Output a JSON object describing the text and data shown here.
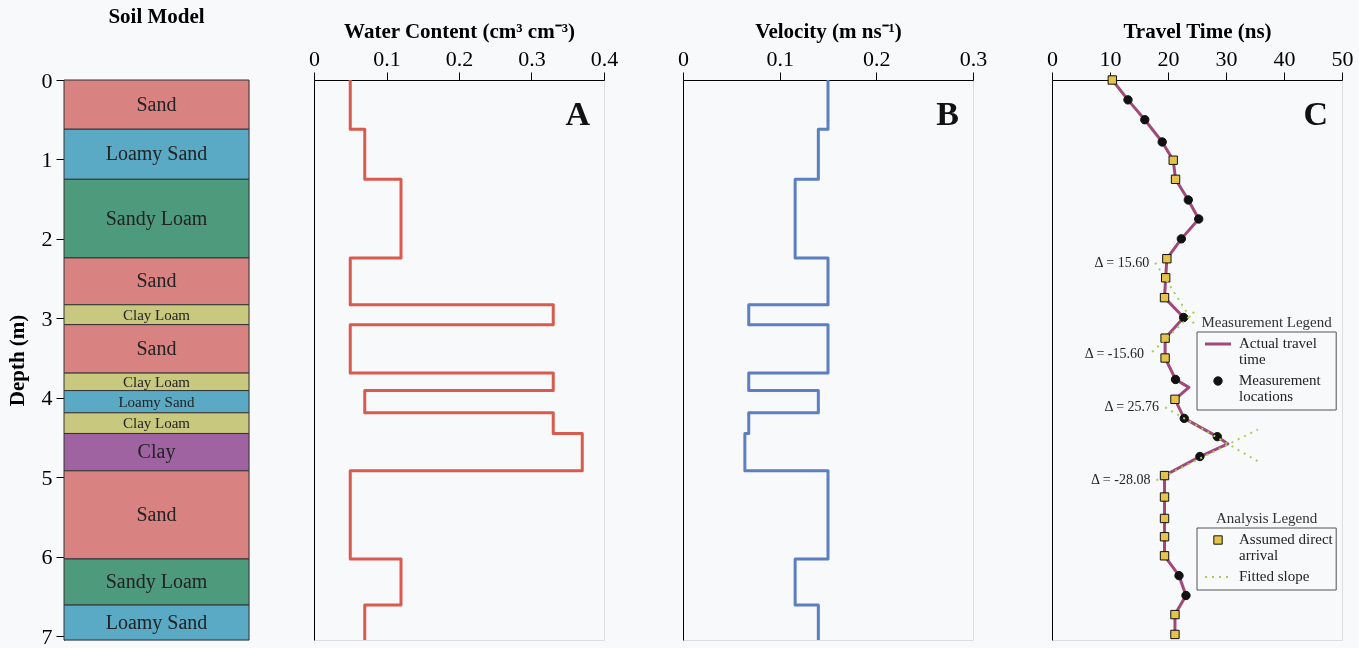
{
  "chart_data": [
    {
      "type": "bar",
      "stacked": true,
      "title": "Soil Model",
      "ylabel": "Depth (m)",
      "categories": [
        null
      ],
      "ylim": [
        7.05,
        0
      ],
      "yticks": [
        0,
        1,
        2,
        3,
        4,
        5,
        6,
        7
      ],
      "tick_labels": "y",
      "series": [
        {
          "name": "Sand",
          "color": "#d98282",
          "values": [
            0.62
          ]
        },
        {
          "name": "Loamy Sand",
          "color": "#5aaac6",
          "values": [
            0.63
          ]
        },
        {
          "name": "Sandy Loam",
          "color": "#4e9a7c",
          "values": [
            0.99
          ]
        },
        {
          "name": "Sand",
          "color": "#d98282",
          "values": [
            0.59
          ]
        },
        {
          "name": "Clay Loam",
          "color": "#c8c97e",
          "values": [
            0.25
          ]
        },
        {
          "name": "Sand",
          "color": "#d98282",
          "values": [
            0.61
          ]
        },
        {
          "name": "Clay Loam",
          "color": "#c8c97e",
          "values": [
            0.22
          ]
        },
        {
          "name": "Loamy Sand",
          "color": "#5aaac6",
          "values": [
            0.28
          ]
        },
        {
          "name": "Clay Loam",
          "color": "#c8c97e",
          "values": [
            0.26
          ]
        },
        {
          "name": "Clay",
          "color": "#9e63a0",
          "values": [
            0.47
          ]
        },
        {
          "name": "Sand",
          "color": "#d98282",
          "values": [
            1.11
          ]
        },
        {
          "name": "Sandy Loam",
          "color": "#4e9a7c",
          "values": [
            0.58
          ]
        },
        {
          "name": "Loamy Sand",
          "color": "#5aaac6",
          "values": [
            0.44
          ]
        }
      ]
    },
    {
      "type": "line",
      "xlabel": "Water Content (cm³ cm⁻³)",
      "xlim": [
        0,
        0.4
      ],
      "xticks": [
        0,
        0.1,
        0.2,
        0.3,
        0.4
      ],
      "ylim": [
        7.05,
        0
      ],
      "tick_labels": "x",
      "annotations": [
        "A"
      ],
      "series": [
        {
          "color": "#d95a4e",
          "x": [
            0.05,
            0.05,
            0.07,
            0.07,
            0.12,
            0.12,
            0.05,
            0.05,
            0.33,
            0.33,
            0.05,
            0.05,
            0.33,
            0.33,
            0.07,
            0.07,
            0.33,
            0.33,
            0.37,
            0.37,
            0.05,
            0.05,
            0.12,
            0.12,
            0.07,
            0.07
          ],
          "values": [
            0,
            0.62,
            0.62,
            1.25,
            1.25,
            2.24,
            2.24,
            2.83,
            2.83,
            3.08,
            3.08,
            3.69,
            3.69,
            3.91,
            3.91,
            4.19,
            4.19,
            4.45,
            4.45,
            4.92,
            4.92,
            6.03,
            6.03,
            6.61,
            6.61,
            7.05
          ]
        }
      ]
    },
    {
      "type": "line",
      "xlabel": "Velocity (m ns⁻¹)",
      "xlim": [
        0,
        0.3
      ],
      "xticks": [
        0,
        0.1,
        0.2,
        0.3
      ],
      "ylim": [
        7.05,
        0
      ],
      "tick_labels": "x",
      "annotations": [
        "B"
      ],
      "series": [
        {
          "color": "#5b7fc0",
          "x": [
            0.15,
            0.15,
            0.14,
            0.14,
            0.116,
            0.116,
            0.15,
            0.15,
            0.068,
            0.068,
            0.15,
            0.15,
            0.068,
            0.068,
            0.14,
            0.14,
            0.068,
            0.068,
            0.064,
            0.064,
            0.15,
            0.15,
            0.116,
            0.116,
            0.14,
            0.14
          ],
          "values": [
            0,
            0.62,
            0.62,
            1.25,
            1.25,
            2.24,
            2.24,
            2.83,
            2.83,
            3.08,
            3.08,
            3.69,
            3.69,
            3.91,
            3.91,
            4.19,
            4.19,
            4.45,
            4.45,
            4.92,
            4.92,
            6.03,
            6.03,
            6.61,
            6.61,
            7.05
          ]
        }
      ]
    },
    {
      "type": "line",
      "xlabel": "Travel Time (ns)",
      "xlim": [
        0,
        50
      ],
      "xticks": [
        0,
        10,
        20,
        30,
        40,
        50
      ],
      "ylim": [
        7.05,
        0
      ],
      "tick_labels": "x",
      "legend": "right",
      "legend_title": [
        "Measurement Legend",
        "Analysis Legend"
      ],
      "annotations": [
        "C",
        {
          "text": "Δ = 15.60",
          "x": 17.8,
          "y": 2.3
        },
        {
          "text": "Δ = -15.60",
          "x": 16.9,
          "y": 3.45
        },
        {
          "text": "Δ = 25.76",
          "x": 19.5,
          "y": 4.12
        },
        {
          "text": "Δ = -28.08",
          "x": 18.0,
          "y": 5.04
        }
      ],
      "series": [
        {
          "name": "Actual travel time",
          "type": "line",
          "color": "#a04a78",
          "x": [
            10.4,
            13.1,
            16.0,
            19.0,
            20.9,
            21.3,
            23.5,
            25.3,
            22.3,
            19.8,
            19.6,
            19.4,
            22.7,
            19.5,
            19.5,
            21.3,
            23.6,
            21.2,
            22.8,
            28.5,
            30.3,
            25.5,
            19.4,
            19.4,
            19.4,
            19.4,
            19.4,
            21.9,
            23.1,
            21.2,
            21.2
          ],
          "values": [
            0,
            0.25,
            0.5,
            0.78,
            1.01,
            1.25,
            1.51,
            1.75,
            2.0,
            2.25,
            2.49,
            2.74,
            2.99,
            3.25,
            3.5,
            3.77,
            3.87,
            4.02,
            4.26,
            4.49,
            4.58,
            4.74,
            4.98,
            5.25,
            5.52,
            5.75,
            5.99,
            6.24,
            6.49,
            6.73,
            6.98
          ]
        },
        {
          "name": "Measurement locations",
          "type": "scatter",
          "marker": "circle",
          "color": "#111111",
          "x": [
            13.1,
            16.0,
            19.0,
            23.5,
            25.3,
            22.3,
            22.7,
            21.3,
            22.8,
            28.5,
            25.5,
            21.9,
            23.1
          ],
          "values": [
            0.25,
            0.5,
            0.78,
            1.51,
            1.75,
            2.0,
            2.99,
            3.77,
            4.26,
            4.49,
            4.74,
            6.24,
            6.49
          ]
        },
        {
          "name": "Assumed direct arrival",
          "type": "scatter",
          "marker": "square",
          "color": "#e6c34a",
          "x": [
            10.4,
            20.9,
            21.3,
            19.8,
            19.6,
            19.4,
            19.5,
            19.5,
            21.2,
            19.4,
            19.4,
            19.4,
            19.4,
            19.4,
            21.2,
            21.2
          ],
          "values": [
            0,
            1.01,
            1.25,
            2.25,
            2.49,
            2.74,
            3.25,
            3.5,
            4.02,
            4.98,
            5.25,
            5.52,
            5.75,
            5.99,
            6.73,
            6.98
          ]
        },
        {
          "name": "Fitted slope",
          "type": "line",
          "line_style": "dotted",
          "color": "#a9cc5e",
          "x": [
            17.8,
            24.5,
            null,
            24.5,
            16.9,
            null,
            19.5,
            35.5,
            null,
            18.0,
            35.5
          ],
          "values": [
            2.3,
            3.07,
            null,
            2.92,
            3.45,
            null,
            4.12,
            4.8,
            null,
            5.04,
            4.4
          ]
        }
      ]
    }
  ]
}
